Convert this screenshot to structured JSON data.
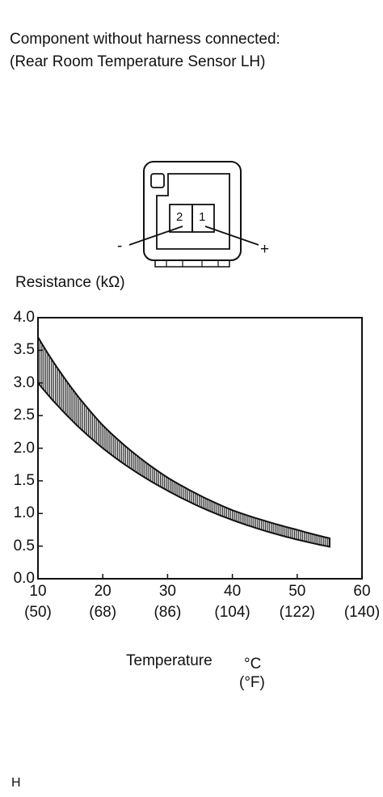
{
  "header": {
    "line1": "Component without harness connected:",
    "line2": "(Rear Room Temperature Sensor LH)"
  },
  "connector": {
    "pin_left": "2",
    "pin_right": "1",
    "minus_label": "-",
    "plus_label": "+"
  },
  "chart_data": {
    "type": "area",
    "title": "",
    "ylabel": "Resistance (kΩ)",
    "xlabel": "Temperature",
    "x_unit_c": "°C",
    "x_unit_f": "(°F)",
    "ylim": [
      0,
      4.0
    ],
    "xlim": [
      10,
      60
    ],
    "yticks": [
      "0.0",
      "0.5",
      "1.0",
      "1.5",
      "2.0",
      "2.5",
      "3.0",
      "3.5",
      "4.0"
    ],
    "xticks": [
      {
        "c": "10",
        "f": "(50)"
      },
      {
        "c": "20",
        "f": "(68)"
      },
      {
        "c": "30",
        "f": "(86)"
      },
      {
        "c": "40",
        "f": "(104)"
      },
      {
        "c": "50",
        "f": "(122)"
      },
      {
        "c": "60",
        "f": "(140)"
      }
    ],
    "series": [
      {
        "values": [
          {
            "x": 10,
            "upper": 3.7,
            "lower": 3.0
          },
          {
            "x": 20,
            "upper": 2.35,
            "lower": 2.0
          },
          {
            "x": 30,
            "upper": 1.55,
            "lower": 1.35
          },
          {
            "x": 40,
            "upper": 1.05,
            "lower": 0.9
          },
          {
            "x": 50,
            "upper": 0.75,
            "lower": 0.6
          },
          {
            "x": 55,
            "upper": 0.62,
            "lower": 0.49
          }
        ]
      }
    ],
    "grid": false
  },
  "footer": {
    "code": "H"
  }
}
